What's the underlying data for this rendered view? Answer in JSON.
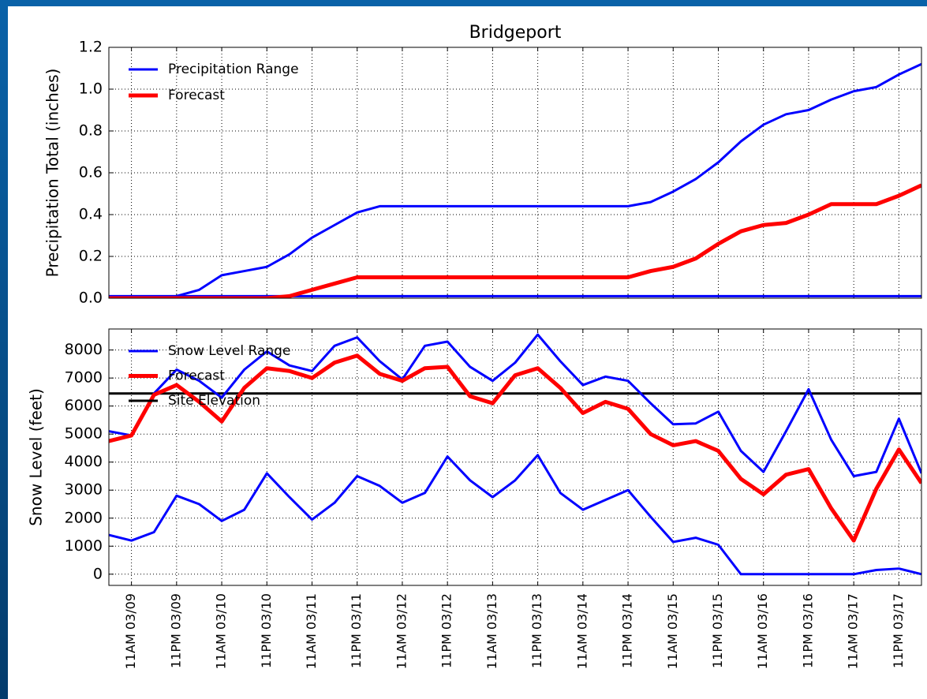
{
  "chart_data": [
    {
      "type": "line",
      "title": "Bridgeport",
      "y_label": "Precipitation Total (inches)",
      "ylim": [
        0,
        1.2
      ],
      "yticks": [
        {
          "value": 0,
          "label": "0.0"
        },
        0.2,
        0.4,
        0.6,
        0.8,
        {
          "value": 1,
          "label": "1.0"
        },
        1.2
      ],
      "grid": true,
      "legend": "upper left",
      "series": [
        {
          "name": "Precipitation Range",
          "color": "#0000ff",
          "values": [
            0,
            0,
            0,
            0.01,
            0.04,
            0.11,
            0.13,
            0.15,
            0.21,
            0.29,
            0.35,
            0.41,
            0.44,
            0.44,
            0.44,
            0.44,
            0.44,
            0.44,
            0.44,
            0.44,
            0.44,
            0.44,
            0.44,
            0.44,
            0.46,
            0.51,
            0.57,
            0.65,
            0.75,
            0.83,
            0.88,
            0.9,
            0.95,
            0.99,
            1.01,
            1.07,
            1.12
          ]
        },
        {
          "name": null,
          "color": "#0000ff",
          "values": [
            0.01,
            0.01,
            0.01,
            0.01,
            0.01,
            0.01,
            0.01,
            0.01,
            0.01,
            0.01,
            0.01,
            0.01,
            0.01,
            0.01,
            0.01,
            0.01,
            0.01,
            0.01,
            0.01,
            0.01,
            0.01,
            0.01,
            0.01,
            0.01,
            0.01,
            0.01,
            0.01,
            0.01,
            0.01,
            0.01,
            0.01,
            0.01,
            0.01,
            0.01,
            0.01,
            0.01,
            0.01
          ]
        },
        {
          "name": "Forecast",
          "color": "#ff0000",
          "values": [
            0,
            0,
            0,
            0,
            0,
            0,
            0,
            0,
            0.01,
            0.04,
            0.07,
            0.1,
            0.1,
            0.1,
            0.1,
            0.1,
            0.1,
            0.1,
            0.1,
            0.1,
            0.1,
            0.1,
            0.1,
            0.1,
            0.13,
            0.15,
            0.19,
            0.26,
            0.32,
            0.35,
            0.36,
            0.4,
            0.45,
            0.45,
            0.45,
            0.49,
            0.54
          ]
        }
      ]
    },
    {
      "type": "line",
      "y_label": "Snow Level (feet)",
      "categories": [
        null,
        "11AM 03/09",
        null,
        "11PM 03/09",
        null,
        "11AM 03/10",
        null,
        "11PM 03/10",
        null,
        "11AM 03/11",
        null,
        "11PM 03/11",
        null,
        "11AM 03/12",
        null,
        "11PM 03/12",
        null,
        "11AM 03/13",
        null,
        "11PM 03/13",
        null,
        "11AM 03/14",
        null,
        "11PM 03/14",
        null,
        "11AM 03/15",
        null,
        "11PM 03/15",
        null,
        "11AM 03/16",
        null,
        "11PM 03/16",
        null,
        "11AM 03/17",
        null,
        "11PM 03/17",
        null
      ],
      "ylim": [
        -400,
        8750
      ],
      "yticks": [
        0,
        1000,
        2000,
        3000,
        4000,
        5000,
        6000,
        7000,
        8000
      ],
      "grid": true,
      "legend": "upper left",
      "series": [
        {
          "name": "Snow Level Range",
          "color": "#0000ff",
          "values": [
            5100,
            4950,
            6450,
            7300,
            6900,
            6300,
            7300,
            7950,
            7450,
            7250,
            8150,
            8450,
            7600,
            6950,
            8150,
            8300,
            7400,
            6900,
            7550,
            8550,
            7600,
            6750,
            7050,
            6900,
            6100,
            5350,
            5380,
            5800,
            4400,
            3650,
            5100,
            6600,
            4800,
            3500,
            3650,
            5550,
            3600
          ]
        },
        {
          "name": null,
          "color": "#0000ff",
          "values": [
            1400,
            1200,
            1500,
            2800,
            2500,
            1900,
            2300,
            3600,
            2750,
            1950,
            2550,
            3500,
            3150,
            2550,
            2900,
            4200,
            3350,
            2750,
            3350,
            4250,
            2900,
            2300,
            2650,
            3000,
            2050,
            1150,
            1300,
            1050,
            0,
            0,
            0,
            0,
            0,
            0,
            150,
            200,
            0
          ]
        },
        {
          "name": "Forecast",
          "color": "#ff0000",
          "values": [
            4750,
            4950,
            6400,
            6750,
            6150,
            5450,
            6650,
            7350,
            7250,
            7000,
            7550,
            7800,
            7150,
            6900,
            7350,
            7400,
            6350,
            6100,
            7100,
            7350,
            6650,
            5750,
            6150,
            5900,
            5000,
            4600,
            4750,
            4400,
            3400,
            2850,
            3550,
            3750,
            2350,
            1200,
            3050,
            4450,
            3250
          ]
        }
      ],
      "hlines": [
        {
          "name": "Site Elevation",
          "value": 6450,
          "color": "#000000"
        }
      ]
    }
  ]
}
